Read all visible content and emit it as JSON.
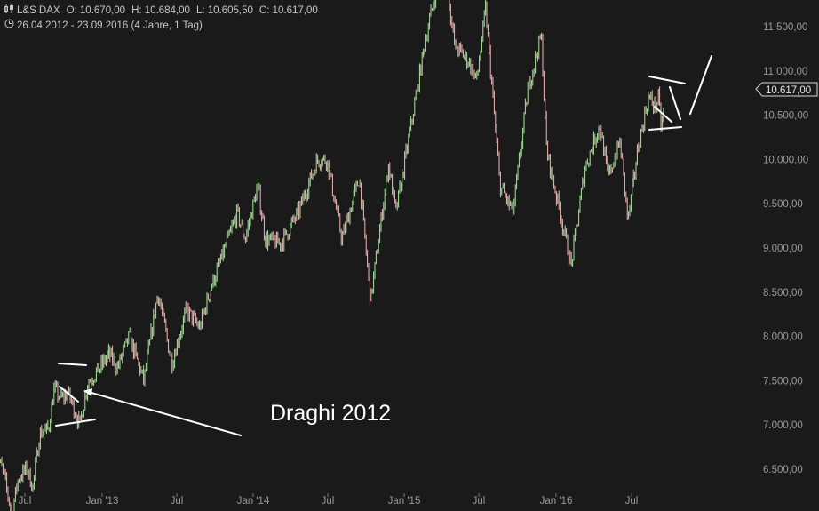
{
  "header": {
    "symbol_icon": "candle-icon",
    "symbol": "L&S DAX",
    "open": "O: 10.670,00",
    "high": "H: 10.684,00",
    "low": "L: 10.605,50",
    "close": "C: 10.617,00",
    "clock_icon": "clock-icon",
    "range": "26.04.2012 - 23.09.2016 (4 Jahre, 1 Tag)"
  },
  "price_tag": "10.617,00",
  "annotation": "Draghi 2012",
  "colors": {
    "background": "#1b1a1a",
    "up": "#a8e6a0",
    "down": "#f2b6b6",
    "drawing": "#ffffff",
    "axis_text": "#9a9a9a"
  },
  "chart_data": {
    "type": "line",
    "title": "L&S DAX",
    "price_scale_ticks": [
      "11.500,00",
      "11.000,00",
      "10.500,00",
      "10.000,00",
      "9.500,00",
      "9.000,00",
      "8.500,00",
      "8.000,00",
      "7.500,00",
      "7.000,00",
      "6.500,00"
    ],
    "time_ticks": [
      "Jul",
      "Jan '13",
      "Jul",
      "Jan '14",
      "Jul",
      "Jan '15",
      "Jul",
      "Jan '16",
      "Jul"
    ],
    "ylim": [
      6300,
      11800
    ],
    "series": [
      {
        "values": [
          [
            "2012-04-26",
            6700
          ],
          [
            "2012-05-15",
            6450
          ],
          [
            "2012-06-04",
            6000
          ],
          [
            "2012-06-20",
            6400
          ],
          [
            "2012-07-10",
            6500
          ],
          [
            "2012-07-25",
            6300
          ],
          [
            "2012-08-10",
            6900
          ],
          [
            "2012-08-31",
            6950
          ],
          [
            "2012-09-14",
            7400
          ],
          [
            "2012-10-01",
            7300
          ],
          [
            "2012-10-18",
            7350
          ],
          [
            "2012-11-08",
            7100
          ],
          [
            "2012-11-15",
            7000
          ],
          [
            "2012-12-04",
            7480
          ],
          [
            "2012-12-28",
            7610
          ],
          [
            "2013-01-24",
            7800
          ],
          [
            "2013-02-14",
            7650
          ],
          [
            "2013-03-14",
            8000
          ],
          [
            "2013-04-18",
            7500
          ],
          [
            "2013-05-22",
            8500
          ],
          [
            "2013-06-24",
            7700
          ],
          [
            "2013-07-30",
            8300
          ],
          [
            "2013-08-30",
            8100
          ],
          [
            "2013-09-30",
            8600
          ],
          [
            "2013-10-31",
            9000
          ],
          [
            "2013-11-29",
            9400
          ],
          [
            "2013-12-18",
            9100
          ],
          [
            "2014-01-17",
            9700
          ],
          [
            "2014-02-05",
            9100
          ],
          [
            "2014-03-14",
            9050
          ],
          [
            "2014-04-25",
            9400
          ],
          [
            "2014-06-10",
            10000
          ],
          [
            "2014-07-03",
            10000
          ],
          [
            "2014-08-08",
            9100
          ],
          [
            "2014-09-19",
            9800
          ],
          [
            "2014-10-16",
            8400
          ],
          [
            "2014-11-28",
            9950
          ],
          [
            "2014-12-16",
            9400
          ],
          [
            "2015-01-22",
            10400
          ],
          [
            "2015-02-27",
            11400
          ],
          [
            "2015-04-10",
            12300
          ],
          [
            "2015-05-06",
            11300
          ],
          [
            "2015-06-10",
            11100
          ],
          [
            "2015-06-29",
            10900
          ],
          [
            "2015-07-20",
            11700
          ],
          [
            "2015-08-24",
            9700
          ],
          [
            "2015-09-24",
            9400
          ],
          [
            "2015-10-30",
            10800
          ],
          [
            "2015-12-01",
            11400
          ],
          [
            "2015-12-14",
            10100
          ],
          [
            "2016-01-20",
            9300
          ],
          [
            "2016-02-11",
            8800
          ],
          [
            "2016-03-15",
            9900
          ],
          [
            "2016-04-20",
            10400
          ],
          [
            "2016-05-10",
            9800
          ],
          [
            "2016-06-08",
            10200
          ],
          [
            "2016-06-27",
            9300
          ],
          [
            "2016-07-20",
            10100
          ],
          [
            "2016-08-15",
            10700
          ],
          [
            "2016-09-01",
            10600
          ],
          [
            "2016-09-08",
            10700
          ],
          [
            "2016-09-15",
            10350
          ],
          [
            "2016-09-23",
            10617
          ]
        ]
      }
    ],
    "annotations": [
      "Draghi 2012"
    ],
    "grid": false,
    "price_scale": "right"
  }
}
